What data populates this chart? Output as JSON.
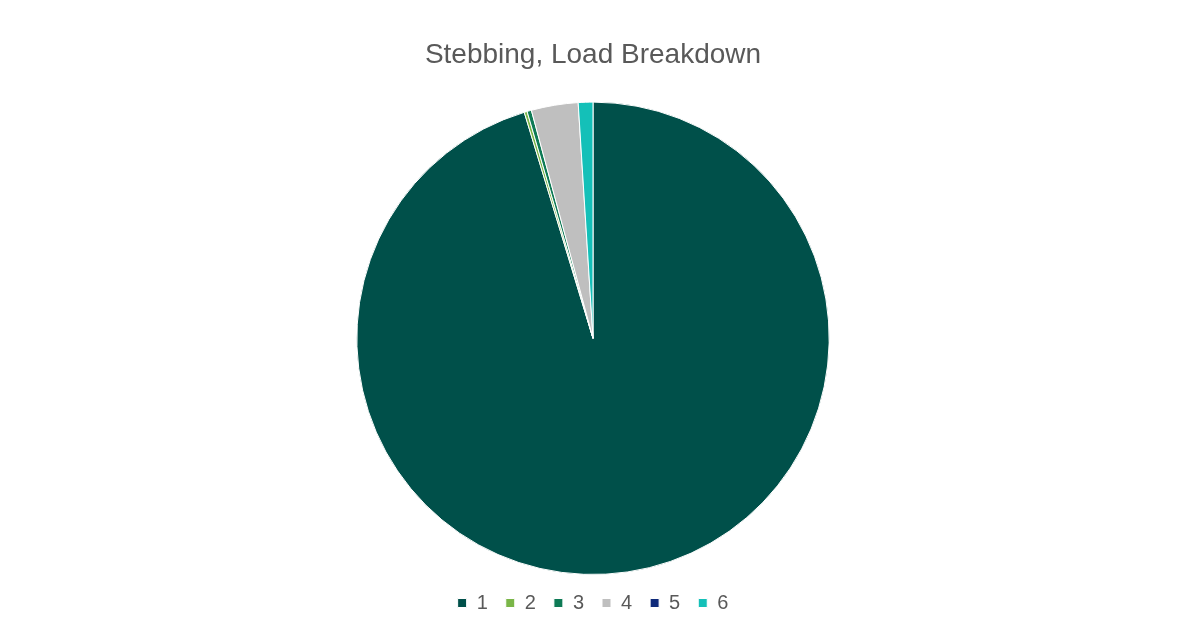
{
  "chart_data": {
    "type": "pie",
    "title": "Stebbing, Load Breakdown",
    "categories": [
      "1",
      "2",
      "3",
      "4",
      "5",
      "6"
    ],
    "values": [
      95.3,
      0.2,
      0.3,
      3.2,
      0,
      1
    ],
    "colors": [
      "#00504a",
      "#7ab648",
      "#0e7a55",
      "#bfbfbf",
      "#0f2a7a",
      "#14c0b8"
    ],
    "legend": "bottom"
  }
}
